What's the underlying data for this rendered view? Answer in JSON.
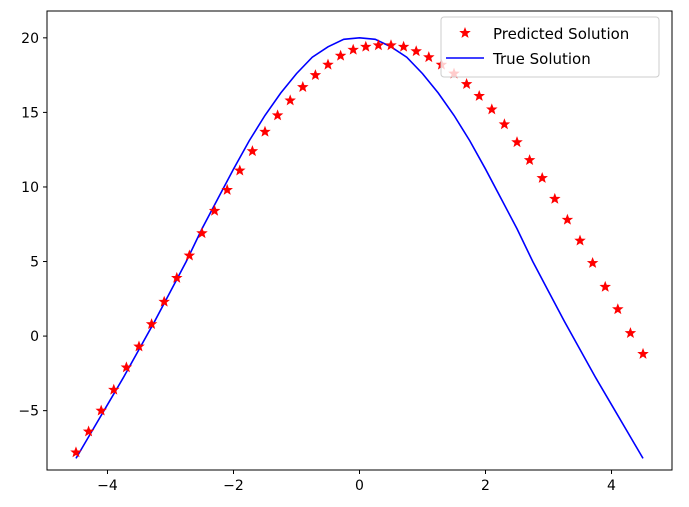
{
  "chart_data": {
    "type": "line",
    "title": "",
    "xlabel": "",
    "ylabel": "",
    "xlim": [
      -4.96,
      4.96
    ],
    "ylim": [
      -8.98,
      21.8
    ],
    "grid": false,
    "legend_position": "top-right",
    "xticks": [
      -4,
      -2,
      0,
      2,
      4
    ],
    "xtick_labels": [
      "−4",
      "−2",
      "0",
      "2",
      "4"
    ],
    "yticks": [
      -5,
      0,
      5,
      10,
      15,
      20
    ],
    "ytick_labels": [
      "−5",
      "0",
      "5",
      "10",
      "15",
      "20"
    ],
    "series": [
      {
        "name": "Predicted Solution",
        "style": "markers",
        "marker": "star",
        "color": "#ff0000",
        "x": [
          -4.5,
          -4.3,
          -4.1,
          -3.9,
          -3.7,
          -3.5,
          -3.3,
          -3.1,
          -2.9,
          -2.7,
          -2.5,
          -2.3,
          -2.1,
          -1.9,
          -1.7,
          -1.5,
          -1.3,
          -1.1,
          -0.9,
          -0.7,
          -0.5,
          -0.3,
          -0.1,
          0.1,
          0.3,
          0.5,
          0.7,
          0.9,
          1.1,
          1.3,
          1.5,
          1.7,
          1.9,
          2.1,
          2.3,
          2.5,
          2.7,
          2.9,
          3.1,
          3.3,
          3.5,
          3.7,
          3.9,
          4.1,
          4.3,
          4.5
        ],
        "y": [
          -7.8,
          -6.4,
          -5.0,
          -3.6,
          -2.1,
          -0.7,
          0.8,
          2.3,
          3.9,
          5.4,
          6.9,
          8.4,
          9.8,
          11.1,
          12.4,
          13.7,
          14.8,
          15.8,
          16.7,
          17.5,
          18.2,
          18.8,
          19.2,
          19.4,
          19.5,
          19.5,
          19.4,
          19.1,
          18.7,
          18.2,
          17.6,
          16.9,
          16.1,
          15.2,
          14.2,
          13.0,
          11.8,
          10.6,
          9.2,
          7.8,
          6.4,
          4.9,
          3.3,
          1.8,
          0.2,
          -1.2
        ]
      },
      {
        "name": "True Solution",
        "style": "line",
        "color": "#0000ff",
        "x": [
          -4.5,
          -4.25,
          -4.0,
          -3.75,
          -3.5,
          -3.25,
          -3.0,
          -2.75,
          -2.5,
          -2.25,
          -2.0,
          -1.75,
          -1.5,
          -1.25,
          -1.0,
          -0.75,
          -0.5,
          -0.25,
          0.0,
          0.25,
          0.5,
          0.75,
          1.0,
          1.25,
          1.5,
          1.75,
          2.0,
          2.25,
          2.5,
          2.75,
          3.0,
          3.25,
          3.5,
          3.75,
          4.0,
          4.25,
          4.5
        ],
        "y": [
          -8.2,
          -6.4,
          -4.6,
          -2.8,
          -0.9,
          1.0,
          3.0,
          5.0,
          7.2,
          9.2,
          11.2,
          13.1,
          14.8,
          16.3,
          17.6,
          18.7,
          19.4,
          19.9,
          20.0,
          19.9,
          19.4,
          18.7,
          17.6,
          16.3,
          14.8,
          13.1,
          11.2,
          9.2,
          7.2,
          5.0,
          3.0,
          1.0,
          -0.9,
          -2.8,
          -4.6,
          -6.4,
          -8.2
        ]
      }
    ]
  }
}
